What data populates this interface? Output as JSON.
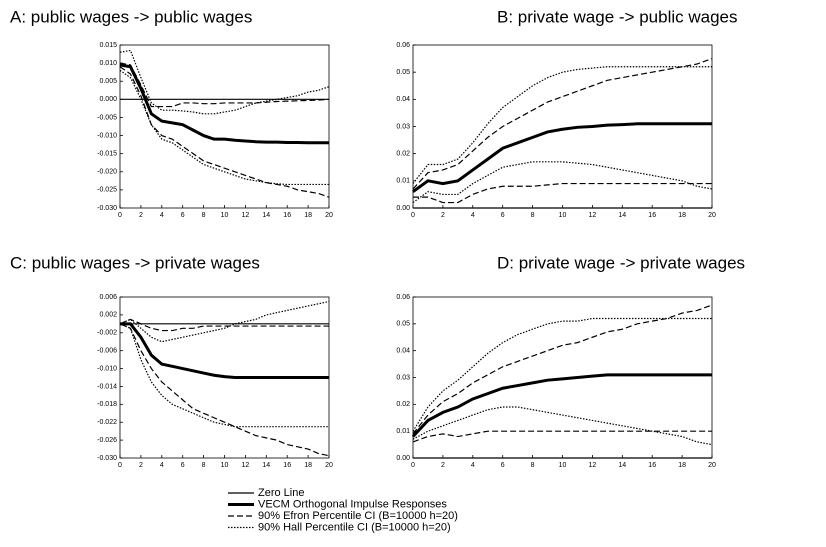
{
  "chart_data": [
    {
      "type": "line",
      "title": "A: public wages -> public wages",
      "x": [
        0,
        1,
        2,
        3,
        4,
        5,
        6,
        7,
        8,
        9,
        10,
        11,
        12,
        13,
        14,
        15,
        16,
        17,
        18,
        19,
        20
      ],
      "xlim": [
        0,
        20
      ],
      "xticks": [
        0,
        2,
        4,
        6,
        8,
        10,
        12,
        14,
        16,
        18,
        20
      ],
      "ylim": [
        -0.03,
        0.015
      ],
      "yticks": [
        {
          "value": 0.015,
          "label": "0.015"
        },
        {
          "value": 0.01,
          "label": "0.010"
        },
        {
          "value": 0.005,
          "label": "0.005"
        },
        {
          "value": 0,
          "label": "0.000"
        },
        {
          "value": -0.005,
          "label": "-0.005"
        },
        {
          "value": -0.01,
          "label": "-0.010"
        },
        {
          "value": -0.015,
          "label": "-0.015"
        },
        {
          "value": -0.02,
          "label": "-0.020"
        },
        {
          "value": -0.025,
          "label": "-0.025"
        },
        {
          "value": -0.03,
          "label": "-0.030"
        }
      ],
      "series": [
        {
          "style": "solid",
          "values": [
            0,
            0,
            0,
            0,
            0,
            0,
            0,
            0,
            0,
            0,
            0,
            0,
            0,
            0,
            0,
            0,
            0,
            0,
            0,
            0,
            0
          ]
        },
        {
          "style": "thick",
          "values": [
            0.0095,
            0.009,
            0.003,
            -0.004,
            -0.006,
            -0.0065,
            -0.007,
            -0.0085,
            -0.01,
            -0.011,
            -0.011,
            -0.0113,
            -0.0115,
            -0.0117,
            -0.0118,
            -0.0118,
            -0.0119,
            -0.0119,
            -0.012,
            -0.012,
            -0.012
          ]
        },
        {
          "style": "dashed",
          "values": [
            0.01,
            0.0095,
            0.004,
            -0.002,
            -0.002,
            -0.002,
            -0.001,
            -0.001,
            -0.0012,
            -0.0012,
            -0.001,
            -0.001,
            -0.001,
            -0.001,
            -0.0008,
            -0.0006,
            -0.0005,
            -0.0004,
            -0.0003,
            -0.0002,
            0
          ]
        },
        {
          "style": "dashed",
          "values": [
            0.009,
            0.007,
            0.001,
            -0.007,
            -0.01,
            -0.011,
            -0.013,
            -0.015,
            -0.017,
            -0.018,
            -0.019,
            -0.02,
            -0.021,
            -0.022,
            -0.023,
            -0.0235,
            -0.024,
            -0.025,
            -0.0255,
            -0.026,
            -0.027
          ]
        },
        {
          "style": "dotted",
          "values": [
            0.013,
            0.0135,
            0.006,
            -0.001,
            -0.003,
            -0.003,
            -0.0032,
            -0.0035,
            -0.004,
            -0.004,
            -0.0035,
            -0.003,
            -0.002,
            -0.001,
            -0.0005,
            0,
            0.0005,
            0.001,
            0.002,
            0.0025,
            0.0035
          ]
        },
        {
          "style": "dotted",
          "values": [
            0.008,
            0.006,
            0,
            -0.007,
            -0.011,
            -0.012,
            -0.014,
            -0.016,
            -0.018,
            -0.019,
            -0.02,
            -0.021,
            -0.022,
            -0.0225,
            -0.023,
            -0.0233,
            -0.0235,
            -0.0235,
            -0.0235,
            -0.0235,
            -0.0235
          ]
        }
      ]
    },
    {
      "type": "line",
      "title": "B: private wage -> public wages",
      "x": [
        0,
        1,
        2,
        3,
        4,
        5,
        6,
        7,
        8,
        9,
        10,
        11,
        12,
        13,
        14,
        15,
        16,
        17,
        18,
        19,
        20
      ],
      "xlim": [
        0,
        20
      ],
      "xticks": [
        0,
        2,
        4,
        6,
        8,
        10,
        12,
        14,
        16,
        18,
        20
      ],
      "ylim": [
        0,
        0.06
      ],
      "yticks": [
        {
          "value": 0,
          "label": "0.00"
        },
        0.01,
        0.02,
        0.03,
        0.04,
        0.05,
        0.06
      ],
      "series": [
        {
          "style": "solid",
          "values": [
            0,
            0,
            0,
            0,
            0,
            0,
            0,
            0,
            0,
            0,
            0,
            0,
            0,
            0,
            0,
            0,
            0,
            0,
            0,
            0,
            0
          ]
        },
        {
          "style": "thick",
          "values": [
            0.006,
            0.01,
            0.009,
            0.01,
            0.014,
            0.018,
            0.022,
            0.024,
            0.026,
            0.028,
            0.029,
            0.0297,
            0.03,
            0.0305,
            0.0307,
            0.031,
            0.031,
            0.031,
            0.031,
            0.031,
            0.031
          ]
        },
        {
          "style": "dashed",
          "values": [
            0.007,
            0.013,
            0.014,
            0.016,
            0.021,
            0.026,
            0.03,
            0.033,
            0.036,
            0.039,
            0.041,
            0.043,
            0.045,
            0.047,
            0.048,
            0.049,
            0.05,
            0.051,
            0.052,
            0.053,
            0.055
          ]
        },
        {
          "style": "dashed",
          "values": [
            0.004,
            0.004,
            0.002,
            0.002,
            0.005,
            0.007,
            0.008,
            0.008,
            0.008,
            0.0085,
            0.009,
            0.009,
            0.009,
            0.009,
            0.009,
            0.009,
            0.009,
            0.009,
            0.009,
            0.009,
            0.009
          ]
        },
        {
          "style": "dotted",
          "values": [
            0.009,
            0.016,
            0.016,
            0.018,
            0.024,
            0.031,
            0.037,
            0.041,
            0.045,
            0.048,
            0.05,
            0.051,
            0.0515,
            0.052,
            0.052,
            0.052,
            0.052,
            0.052,
            0.052,
            0.052,
            0.052
          ]
        },
        {
          "style": "dotted",
          "values": [
            0.002,
            0.006,
            0.005,
            0.005,
            0.009,
            0.012,
            0.015,
            0.016,
            0.017,
            0.017,
            0.017,
            0.0165,
            0.016,
            0.015,
            0.014,
            0.013,
            0.012,
            0.011,
            0.01,
            0.008,
            0.007
          ]
        }
      ]
    },
    {
      "type": "line",
      "title": "C: public wages -> private wages",
      "x": [
        0,
        1,
        2,
        3,
        4,
        5,
        6,
        7,
        8,
        9,
        10,
        11,
        12,
        13,
        14,
        15,
        16,
        17,
        18,
        19,
        20
      ],
      "xlim": [
        0,
        20
      ],
      "xticks": [
        0,
        2,
        4,
        6,
        8,
        10,
        12,
        14,
        16,
        18,
        20
      ],
      "ylim": [
        -0.03,
        0.006
      ],
      "yticks": [
        0.006,
        0.002,
        -0.002,
        -0.006,
        {
          "value": -0.01,
          "label": "-0.010"
        },
        -0.014,
        -0.018,
        -0.022,
        -0.026,
        {
          "value": -0.03,
          "label": "-0.030"
        }
      ],
      "series": [
        {
          "style": "solid",
          "values": [
            0,
            0,
            0,
            0,
            0,
            0,
            0,
            0,
            0,
            0,
            0,
            0,
            0,
            0,
            0,
            0,
            0,
            0,
            0,
            0,
            0
          ]
        },
        {
          "style": "thick",
          "values": [
            0,
            0,
            -0.003,
            -0.007,
            -0.009,
            -0.0095,
            -0.01,
            -0.0105,
            -0.011,
            -0.0115,
            -0.0118,
            -0.012,
            -0.012,
            -0.012,
            -0.012,
            -0.012,
            -0.012,
            -0.012,
            -0.012,
            -0.012,
            -0.012
          ]
        },
        {
          "style": "dashed",
          "values": [
            0,
            0.001,
            0,
            -0.001,
            -0.0015,
            -0.0015,
            -0.001,
            -0.001,
            -0.0005,
            -0.0005,
            -0.0005,
            -0.0005,
            -0.0005,
            -0.0005,
            -0.0005,
            -0.0005,
            -0.0005,
            -0.0005,
            -0.0005,
            -0.0005,
            -0.0005
          ]
        },
        {
          "style": "dashed",
          "values": [
            0,
            -0.001,
            -0.006,
            -0.01,
            -0.013,
            -0.015,
            -0.017,
            -0.019,
            -0.02,
            -0.021,
            -0.022,
            -0.023,
            -0.024,
            -0.025,
            -0.0255,
            -0.026,
            -0.027,
            -0.0275,
            -0.028,
            -0.029,
            -0.0295
          ]
        },
        {
          "style": "dotted",
          "values": [
            0,
            0.001,
            -0.001,
            -0.003,
            -0.004,
            -0.0035,
            -0.003,
            -0.0025,
            -0.002,
            -0.0015,
            -0.001,
            0,
            0.0005,
            0.001,
            0.002,
            0.0025,
            0.003,
            0.0035,
            0.004,
            0.0045,
            0.005
          ]
        },
        {
          "style": "dotted",
          "values": [
            0,
            -0.001,
            -0.008,
            -0.013,
            -0.016,
            -0.018,
            -0.019,
            -0.02,
            -0.021,
            -0.022,
            -0.0225,
            -0.023,
            -0.023,
            -0.023,
            -0.023,
            -0.023,
            -0.023,
            -0.023,
            -0.023,
            -0.023,
            -0.023
          ]
        }
      ]
    },
    {
      "type": "line",
      "title": "D: private wage -> private wages",
      "x": [
        0,
        1,
        2,
        3,
        4,
        5,
        6,
        7,
        8,
        9,
        10,
        11,
        12,
        13,
        14,
        15,
        16,
        17,
        18,
        19,
        20
      ],
      "xlim": [
        0,
        20
      ],
      "xticks": [
        0,
        2,
        4,
        6,
        8,
        10,
        12,
        14,
        16,
        18,
        20
      ],
      "ylim": [
        0,
        0.06
      ],
      "yticks": [
        {
          "value": 0,
          "label": "0.00"
        },
        0.01,
        0.02,
        0.03,
        0.04,
        0.05,
        0.06
      ],
      "series": [
        {
          "style": "solid",
          "values": [
            0,
            0,
            0,
            0,
            0,
            0,
            0,
            0,
            0,
            0,
            0,
            0,
            0,
            0,
            0,
            0,
            0,
            0,
            0,
            0,
            0
          ]
        },
        {
          "style": "thick",
          "values": [
            0.008,
            0.014,
            0.017,
            0.019,
            0.022,
            0.024,
            0.026,
            0.027,
            0.028,
            0.029,
            0.0295,
            0.03,
            0.0305,
            0.031,
            0.031,
            0.031,
            0.031,
            0.031,
            0.031,
            0.031,
            0.031
          ]
        },
        {
          "style": "dashed",
          "values": [
            0.009,
            0.016,
            0.021,
            0.024,
            0.028,
            0.031,
            0.034,
            0.036,
            0.038,
            0.04,
            0.042,
            0.043,
            0.045,
            0.047,
            0.048,
            0.05,
            0.051,
            0.052,
            0.054,
            0.055,
            0.057
          ]
        },
        {
          "style": "dashed",
          "values": [
            0.006,
            0.008,
            0.009,
            0.008,
            0.009,
            0.01,
            0.01,
            0.01,
            0.01,
            0.01,
            0.01,
            0.01,
            0.01,
            0.01,
            0.01,
            0.01,
            0.01,
            0.01,
            0.01,
            0.01,
            0.01
          ]
        },
        {
          "style": "dotted",
          "values": [
            0.01,
            0.019,
            0.025,
            0.029,
            0.034,
            0.039,
            0.043,
            0.046,
            0.048,
            0.05,
            0.051,
            0.051,
            0.052,
            0.052,
            0.052,
            0.052,
            0.052,
            0.052,
            0.052,
            0.052,
            0.052
          ]
        },
        {
          "style": "dotted",
          "values": [
            0.007,
            0.01,
            0.012,
            0.014,
            0.016,
            0.018,
            0.019,
            0.019,
            0.018,
            0.017,
            0.016,
            0.015,
            0.014,
            0.013,
            0.012,
            0.011,
            0.01,
            0.009,
            0.008,
            0.006,
            0.005
          ]
        }
      ]
    }
  ],
  "legend": [
    {
      "name": "Zero Line",
      "style": "solid"
    },
    {
      "name": "VECM Orthogonal Impulse Responses",
      "style": "thick"
    },
    {
      "name": "90% Efron Percentile CI (B=10000 h=20)",
      "style": "dashed"
    },
    {
      "name": "90% Hall Percentile CI (B=10000 h=20)",
      "style": "dotted"
    }
  ]
}
